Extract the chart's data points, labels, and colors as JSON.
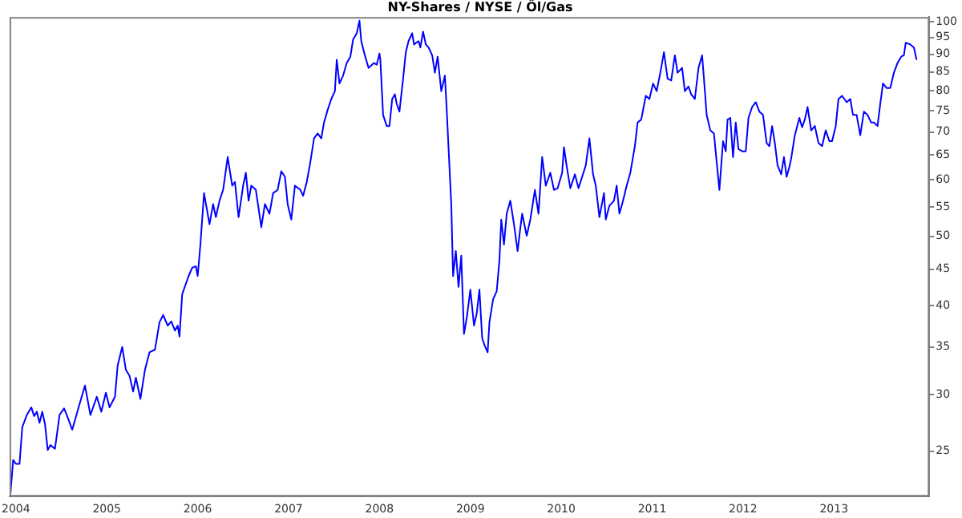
{
  "chart_data": {
    "type": "line",
    "title": "NY-Shares / NYSE / Öl/Gas",
    "x": [
      2003.94,
      2003.97,
      2004.0,
      2004.04,
      2004.07,
      2004.12,
      2004.17,
      2004.2,
      2004.23,
      2004.26,
      2004.29,
      2004.32,
      2004.35,
      2004.38,
      2004.43,
      2004.48,
      2004.53,
      2004.56,
      2004.62,
      2004.69,
      2004.76,
      2004.82,
      2004.89,
      2004.94,
      2004.99,
      2005.03,
      2005.09,
      2005.12,
      2005.17,
      2005.21,
      2005.25,
      2005.29,
      2005.32,
      2005.37,
      2005.42,
      2005.47,
      2005.53,
      2005.58,
      2005.62,
      2005.67,
      2005.71,
      2005.75,
      2005.78,
      2005.8,
      2005.83,
      2005.9,
      2005.94,
      2005.98,
      2006.0,
      2006.03,
      2006.07,
      2006.13,
      2006.17,
      2006.2,
      2006.24,
      2006.28,
      2006.33,
      2006.38,
      2006.41,
      2006.45,
      2006.5,
      2006.53,
      2006.56,
      2006.59,
      2006.64,
      2006.7,
      2006.74,
      2006.79,
      2006.83,
      2006.88,
      2006.92,
      2006.96,
      2006.99,
      2007.03,
      2007.07,
      2007.13,
      2007.16,
      2007.2,
      2007.24,
      2007.28,
      2007.32,
      2007.36,
      2007.39,
      2007.43,
      2007.47,
      2007.51,
      2007.53,
      2007.56,
      2007.6,
      2007.64,
      2007.68,
      2007.71,
      2007.75,
      2007.78,
      2007.8,
      2007.83,
      2007.88,
      2007.94,
      2007.97,
      2008.0,
      2008.01,
      2008.04,
      2008.08,
      2008.11,
      2008.14,
      2008.17,
      2008.19,
      2008.22,
      2008.26,
      2008.29,
      2008.32,
      2008.36,
      2008.38,
      2008.43,
      2008.45,
      2008.48,
      2008.51,
      2008.54,
      2008.58,
      2008.61,
      2008.64,
      2008.68,
      2008.72,
      2008.74,
      2008.79,
      2008.81,
      2008.84,
      2008.87,
      2008.9,
      2008.93,
      2008.96,
      2009.0,
      2009.04,
      2009.07,
      2009.1,
      2009.13,
      2009.16,
      2009.19,
      2009.21,
      2009.25,
      2009.29,
      2009.32,
      2009.34,
      2009.37,
      2009.4,
      2009.44,
      2009.48,
      2009.52,
      2009.55,
      2009.57,
      2009.62,
      2009.66,
      2009.71,
      2009.75,
      2009.79,
      2009.83,
      2009.88,
      2009.92,
      2009.96,
      2010.01,
      2010.03,
      2010.06,
      2010.1,
      2010.15,
      2010.19,
      2010.23,
      2010.27,
      2010.31,
      2010.35,
      2010.38,
      2010.42,
      2010.47,
      2010.49,
      2010.53,
      2010.58,
      2010.61,
      2010.64,
      2010.68,
      2010.72,
      2010.76,
      2010.81,
      2010.84,
      2010.88,
      2010.93,
      2010.97,
      2011.01,
      2011.05,
      2011.09,
      2011.13,
      2011.17,
      2011.21,
      2011.25,
      2011.28,
      2011.33,
      2011.36,
      2011.4,
      2011.43,
      2011.47,
      2011.51,
      2011.55,
      2011.57,
      2011.6,
      2011.64,
      2011.68,
      2011.71,
      2011.74,
      2011.78,
      2011.81,
      2011.83,
      2011.86,
      2011.89,
      2011.92,
      2011.95,
      2011.99,
      2012.03,
      2012.06,
      2012.1,
      2012.14,
      2012.18,
      2012.22,
      2012.26,
      2012.29,
      2012.32,
      2012.35,
      2012.38,
      2012.42,
      2012.45,
      2012.48,
      2012.51,
      2012.53,
      2012.57,
      2012.62,
      2012.65,
      2012.68,
      2012.71,
      2012.75,
      2012.79,
      2012.83,
      2012.87,
      2012.91,
      2012.95,
      2012.98,
      2013.02,
      2013.05,
      2013.09,
      2013.14,
      2013.18,
      2013.21,
      2013.25,
      2013.29,
      2013.33,
      2013.37,
      2013.41,
      2013.44,
      2013.48,
      2013.51,
      2013.54,
      2013.58,
      2013.62,
      2013.66,
      2013.7,
      2013.74,
      2013.77,
      2013.79,
      2013.84,
      2013.88,
      2013.91
    ],
    "series": [
      {
        "color": "#0000ff",
        "values": [
          21.8,
          24.3,
          24.0,
          24.0,
          27.0,
          28.1,
          28.8,
          28.0,
          28.4,
          27.4,
          28.4,
          27.3,
          25.1,
          25.5,
          25.2,
          28.1,
          28.7,
          28.1,
          26.8,
          28.8,
          30.9,
          28.1,
          29.8,
          28.4,
          30.2,
          28.8,
          29.8,
          33.0,
          35.0,
          32.5,
          31.9,
          30.3,
          31.7,
          29.6,
          32.5,
          34.4,
          34.7,
          37.9,
          38.8,
          37.5,
          38.0,
          36.9,
          37.5,
          36.2,
          41.5,
          44.0,
          45.2,
          45.4,
          44.0,
          48.7,
          57.5,
          52.0,
          55.5,
          53.2,
          56.1,
          58.1,
          64.6,
          58.9,
          59.6,
          53.2,
          58.9,
          61.4,
          56.1,
          58.9,
          58.1,
          51.5,
          55.5,
          53.8,
          57.5,
          58.1,
          61.7,
          60.6,
          55.5,
          52.8,
          58.9,
          58.1,
          57.0,
          59.6,
          63.6,
          68.6,
          69.7,
          68.6,
          72.2,
          75.2,
          77.9,
          79.9,
          88.4,
          81.9,
          84.0,
          87.5,
          89.3,
          94.4,
          96.3,
          100.3,
          93.9,
          90.6,
          86.1,
          87.5,
          87.0,
          90.2,
          88.4,
          74.0,
          71.4,
          71.4,
          77.9,
          79.1,
          76.7,
          74.8,
          83.2,
          90.6,
          93.9,
          96.3,
          92.9,
          93.9,
          92.0,
          96.8,
          92.9,
          92.0,
          89.7,
          84.8,
          89.3,
          79.9,
          84.0,
          75.2,
          55.5,
          44.0,
          47.7,
          42.5,
          47.0,
          36.5,
          38.4,
          42.1,
          37.5,
          39.0,
          42.1,
          36.0,
          35.1,
          34.4,
          37.9,
          40.8,
          41.9,
          46.3,
          52.8,
          48.7,
          53.8,
          56.1,
          52.0,
          47.7,
          51.4,
          53.8,
          50.1,
          52.8,
          58.1,
          53.8,
          64.6,
          58.9,
          61.4,
          58.1,
          58.4,
          61.4,
          66.7,
          62.7,
          58.4,
          61.1,
          58.4,
          60.6,
          62.9,
          68.6,
          61.1,
          58.9,
          53.2,
          57.5,
          52.8,
          55.2,
          56.1,
          58.9,
          53.8,
          56.1,
          58.9,
          61.4,
          66.9,
          72.2,
          72.9,
          78.7,
          77.9,
          81.9,
          79.9,
          84.8,
          90.6,
          83.2,
          82.7,
          89.7,
          84.8,
          86.1,
          79.9,
          81.1,
          79.1,
          77.9,
          86.1,
          89.7,
          83.2,
          74.0,
          70.4,
          69.7,
          63.6,
          58.1,
          68.0,
          65.8,
          72.9,
          73.3,
          64.6,
          72.2,
          66.3,
          65.8,
          65.8,
          73.3,
          75.9,
          77.1,
          74.8,
          74.0,
          67.6,
          66.9,
          71.4,
          67.6,
          62.9,
          61.1,
          64.6,
          60.6,
          62.6,
          64.3,
          69.3,
          73.3,
          71.1,
          72.9,
          75.9,
          70.4,
          71.4,
          67.6,
          66.9,
          70.4,
          68.0,
          68.0,
          71.4,
          77.9,
          78.7,
          77.1,
          77.9,
          74.0,
          74.0,
          69.3,
          74.8,
          74.0,
          72.2,
          72.2,
          71.4,
          76.7,
          81.9,
          80.7,
          80.7,
          84.8,
          87.5,
          89.3,
          89.7,
          93.4,
          92.9,
          92.0,
          88.4
        ]
      }
    ],
    "xlim": [
      2003.93,
      2014.05
    ],
    "xticks": [
      2004,
      2005,
      2006,
      2007,
      2008,
      2009,
      2010,
      2011,
      2012,
      2013
    ],
    "ylim": [
      21.6,
      101.5
    ],
    "yticks": [
      25,
      30,
      35,
      40,
      45,
      50,
      55,
      60,
      65,
      70,
      75,
      80,
      85,
      90,
      95,
      100
    ],
    "log": "y",
    "grid": false,
    "legend": false,
    "marker": "none",
    "line_style": "solid"
  }
}
